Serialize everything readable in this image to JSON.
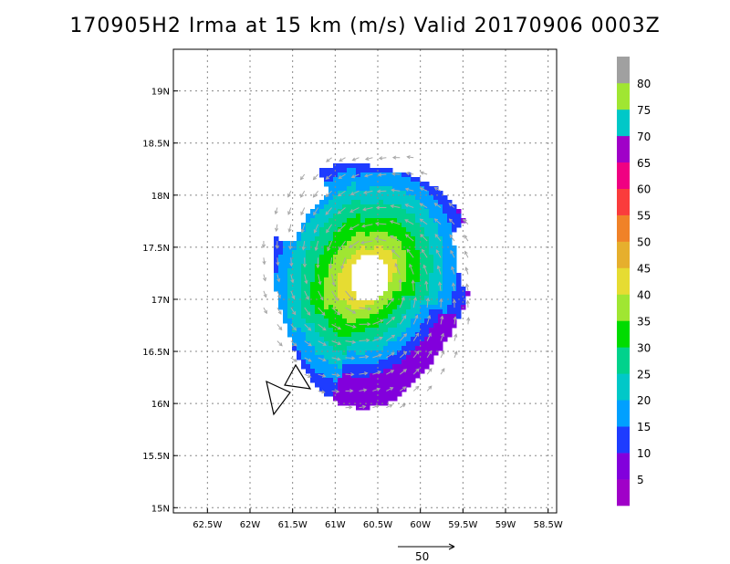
{
  "chart_data": {
    "type": "heatmap",
    "title": "170905H2 Irma at 15 km (m/s) Valid 20170906 0003Z",
    "x_tick_labels": [
      "62.5W",
      "62W",
      "61.5W",
      "61W",
      "60.5W",
      "60W",
      "59.5W",
      "59W",
      "58.5W"
    ],
    "x_ticks": [
      -62.5,
      -62.0,
      -61.5,
      -61.0,
      -60.5,
      -60.0,
      -59.5,
      -59.0,
      -58.5
    ],
    "y_tick_labels": [
      "15N",
      "15.5N",
      "16N",
      "16.5N",
      "17N",
      "17.5N",
      "18N",
      "18.5N",
      "19N"
    ],
    "y_ticks": [
      15.0,
      15.5,
      16.0,
      16.5,
      17.0,
      17.5,
      18.0,
      18.5,
      19.0
    ],
    "xlim": [
      -62.9,
      -58.4
    ],
    "ylim": [
      14.95,
      19.4
    ],
    "grid": true,
    "colorbar": {
      "labels": [
        "5",
        "10",
        "15",
        "20",
        "25",
        "30",
        "35",
        "40",
        "45",
        "50",
        "55",
        "60",
        "65",
        "70",
        "75",
        "80"
      ],
      "bins": [
        {
          "min": 0,
          "max": 5,
          "color": "#a000c8"
        },
        {
          "min": 5,
          "max": 10,
          "color": "#8200dc"
        },
        {
          "min": 10,
          "max": 15,
          "color": "#1e3cff"
        },
        {
          "min": 15,
          "max": 20,
          "color": "#00a0ff"
        },
        {
          "min": 20,
          "max": 25,
          "color": "#00c8c8"
        },
        {
          "min": 25,
          "max": 30,
          "color": "#00d28c"
        },
        {
          "min": 30,
          "max": 35,
          "color": "#00dc00"
        },
        {
          "min": 35,
          "max": 40,
          "color": "#a0e632"
        },
        {
          "min": 40,
          "max": 45,
          "color": "#e6dc32"
        },
        {
          "min": 45,
          "max": 50,
          "color": "#e6af2d"
        },
        {
          "min": 50,
          "max": 55,
          "color": "#f08228"
        },
        {
          "min": 55,
          "max": 60,
          "color": "#fa3c3c"
        },
        {
          "min": 60,
          "max": 65,
          "color": "#f00082"
        },
        {
          "min": 65,
          "max": 70,
          "color": "#a000c8"
        },
        {
          "min": 70,
          "max": 75,
          "color": "#00c8c8"
        },
        {
          "min": 75,
          "max": 80,
          "color": "#a0e632"
        },
        {
          "min": 80,
          "max": 85,
          "color": "#a0a0a0"
        }
      ]
    },
    "reference_vector": {
      "label": "50",
      "value": 50
    },
    "field": {
      "center": [
        -60.6,
        17.2
      ],
      "eye_radius_deg": 0.23,
      "outer_radius_deg": 1.25,
      "peak_speed": 41,
      "dominant_range": [
        10,
        41
      ]
    }
  }
}
